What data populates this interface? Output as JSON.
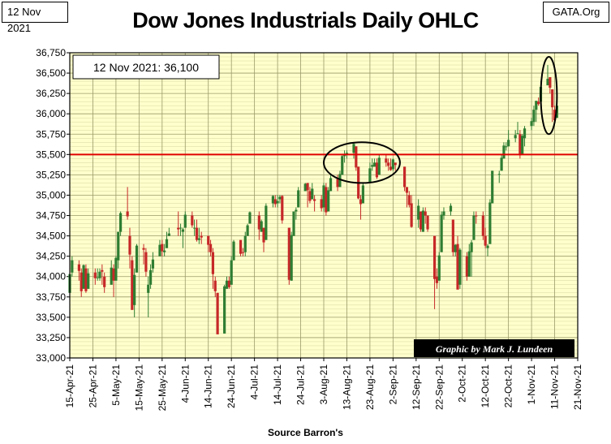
{
  "header": {
    "date_tag": "12 Nov 2021",
    "source_tag": "GATA.Org",
    "title": "Dow Jones Industrials Daily OHLC"
  },
  "footer": {
    "source": "Source Barron's"
  },
  "colors": {
    "plot_bg": "#ffffcc",
    "up": "#2e7d32",
    "down": "#c62828",
    "reference_line": "#e00000",
    "credit_bg": "#000000"
  },
  "chart_data": {
    "type": "candlestick",
    "title": "Dow Jones Industrials Daily OHLC",
    "annotation_box": "12 Nov 2021:  36,100",
    "credit": "Graphic by Mark J. Lundeen",
    "reference_line": {
      "value": 35500,
      "color": "#e00000"
    },
    "ylim": [
      33000,
      36750
    ],
    "y_ticks": [
      "33,000",
      "33,250",
      "33,500",
      "33,750",
      "34,000",
      "34,250",
      "34,500",
      "34,750",
      "35,000",
      "35,250",
      "35,500",
      "35,750",
      "36,000",
      "36,250",
      "36,500",
      "36,750"
    ],
    "x_ticks": [
      "15-Apr-21",
      "25-Apr-21",
      "5-May-21",
      "15-May-21",
      "25-May-21",
      "4-Jun-21",
      "14-Jun-21",
      "24-Jun-21",
      "4-Jul-21",
      "14-Jul-21",
      "24-Jul-21",
      "3-Aug-21",
      "13-Aug-21",
      "23-Aug-21",
      "2-Sep-21",
      "12-Sep-21",
      "22-Sep-21",
      "2-Oct-21",
      "12-Oct-21",
      "22-Oct-21",
      "1-Nov-21",
      "11-Nov-21",
      "21-Nov-21"
    ],
    "x_range": [
      "2021-04-15",
      "2021-11-21"
    ],
    "grid": true,
    "highlights": [
      {
        "shape": "ellipse",
        "x_from": "2021-08-03",
        "x_to": "2021-09-05",
        "y_from": 35150,
        "y_to": 35650
      },
      {
        "shape": "ellipse",
        "x_from": "2021-11-05",
        "x_to": "2021-11-12",
        "y_from": 35750,
        "y_to": 36700
      }
    ],
    "series_ohlc": [
      [
        "2021-04-15",
        33800,
        34050,
        33700,
        34030
      ],
      [
        "2021-04-16",
        34050,
        34250,
        34000,
        34200
      ],
      [
        "2021-04-19",
        34150,
        34200,
        33950,
        34070
      ],
      [
        "2021-04-20",
        34050,
        34100,
        33750,
        33820
      ],
      [
        "2021-04-21",
        33850,
        34150,
        33850,
        34140
      ],
      [
        "2021-04-22",
        34100,
        34150,
        33800,
        33820
      ],
      [
        "2021-04-23",
        33850,
        34100,
        33850,
        34040
      ],
      [
        "2021-04-26",
        34050,
        34100,
        33900,
        33980
      ],
      [
        "2021-04-27",
        33980,
        34100,
        33950,
        33990
      ],
      [
        "2021-04-28",
        33980,
        34100,
        33950,
        34060
      ],
      [
        "2021-04-29",
        34080,
        34150,
        33900,
        34060
      ],
      [
        "2021-04-30",
        34000,
        34050,
        33800,
        33870
      ],
      [
        "2021-05-03",
        33900,
        34200,
        33900,
        34110
      ],
      [
        "2021-05-04",
        34100,
        34150,
        33750,
        33950
      ],
      [
        "2021-05-05",
        33950,
        34250,
        33950,
        34230
      ],
      [
        "2021-05-06",
        34200,
        34550,
        34100,
        34550
      ],
      [
        "2021-05-07",
        34550,
        34800,
        34500,
        34780
      ],
      [
        "2021-05-10",
        34800,
        35100,
        34700,
        34740
      ],
      [
        "2021-05-11",
        34500,
        34600,
        34100,
        34270
      ],
      [
        "2021-05-12",
        34200,
        34250,
        33600,
        33590
      ],
      [
        "2021-05-13",
        33650,
        34100,
        33500,
        34020
      ],
      [
        "2021-05-14",
        34050,
        34400,
        34050,
        34380
      ],
      [
        "2021-05-17",
        34350,
        34400,
        34150,
        34330
      ],
      [
        "2021-05-18",
        34300,
        34350,
        34000,
        34060
      ],
      [
        "2021-05-19",
        33800,
        34000,
        33500,
        33900
      ],
      [
        "2021-05-20",
        33900,
        34150,
        33850,
        34080
      ],
      [
        "2021-05-21",
        34100,
        34300,
        34050,
        34210
      ],
      [
        "2021-05-24",
        34250,
        34450,
        34250,
        34390
      ],
      [
        "2021-05-25",
        34400,
        34450,
        34250,
        34310
      ],
      [
        "2021-05-26",
        34300,
        34400,
        34250,
        34320
      ],
      [
        "2021-05-27",
        34350,
        34550,
        34350,
        34460
      ],
      [
        "2021-05-28",
        34500,
        34600,
        34500,
        34530
      ],
      [
        "2021-06-01",
        34600,
        34800,
        34500,
        34580
      ],
      [
        "2021-06-02",
        34600,
        34650,
        34500,
        34600
      ],
      [
        "2021-06-03",
        34550,
        34600,
        34350,
        34580
      ],
      [
        "2021-06-04",
        34600,
        34800,
        34600,
        34760
      ],
      [
        "2021-06-07",
        34750,
        34800,
        34600,
        34630
      ],
      [
        "2021-06-08",
        34600,
        34700,
        34500,
        34600
      ],
      [
        "2021-06-09",
        34600,
        34700,
        34430,
        34450
      ],
      [
        "2021-06-10",
        34450,
        34600,
        34400,
        34470
      ],
      [
        "2021-06-11",
        34500,
        34550,
        34400,
        34480
      ],
      [
        "2021-06-14",
        34500,
        34500,
        34300,
        34390
      ],
      [
        "2021-06-15",
        34400,
        34450,
        34250,
        34300
      ],
      [
        "2021-06-16",
        34300,
        34350,
        33850,
        34030
      ],
      [
        "2021-06-17",
        33950,
        34000,
        33750,
        33820
      ],
      [
        "2021-06-18",
        33800,
        33800,
        33300,
        33290
      ],
      [
        "2021-06-21",
        33300,
        33900,
        33300,
        33880
      ],
      [
        "2021-06-22",
        33850,
        34000,
        33850,
        33950
      ],
      [
        "2021-06-23",
        33950,
        34000,
        33850,
        33870
      ],
      [
        "2021-06-24",
        33900,
        34250,
        33900,
        34200
      ],
      [
        "2021-06-25",
        34200,
        34450,
        34200,
        34430
      ],
      [
        "2021-06-28",
        34450,
        34450,
        34250,
        34280
      ],
      [
        "2021-06-29",
        34300,
        34350,
        34250,
        34290
      ],
      [
        "2021-06-30",
        34300,
        34550,
        34250,
        34500
      ],
      [
        "2021-07-01",
        34500,
        34650,
        34500,
        34630
      ],
      [
        "2021-07-02",
        34650,
        34800,
        34650,
        34790
      ],
      [
        "2021-07-06",
        34750,
        34800,
        34450,
        34580
      ],
      [
        "2021-07-07",
        34550,
        34700,
        34550,
        34680
      ],
      [
        "2021-07-08",
        34600,
        34600,
        34300,
        34420
      ],
      [
        "2021-07-09",
        34450,
        34900,
        34450,
        34870
      ],
      [
        "2021-07-12",
        34900,
        35000,
        34850,
        34990
      ],
      [
        "2021-07-13",
        34950,
        35000,
        34850,
        34890
      ],
      [
        "2021-07-14",
        34900,
        35000,
        34850,
        34930
      ],
      [
        "2021-07-15",
        34950,
        35000,
        34900,
        34980
      ],
      [
        "2021-07-16",
        34990,
        35000,
        34650,
        34690
      ],
      [
        "2021-07-19",
        34600,
        34600,
        33900,
        33960
      ],
      [
        "2021-07-20",
        33950,
        34550,
        33950,
        34510
      ],
      [
        "2021-07-21",
        34500,
        34800,
        34500,
        34800
      ],
      [
        "2021-07-22",
        34800,
        34850,
        34700,
        34820
      ],
      [
        "2021-07-23",
        34850,
        35100,
        34850,
        35060
      ],
      [
        "2021-07-26",
        35050,
        35150,
        35050,
        35140
      ],
      [
        "2021-07-27",
        35150,
        35150,
        34850,
        35060
      ],
      [
        "2021-07-28",
        35050,
        35100,
        34900,
        34930
      ],
      [
        "2021-07-29",
        34950,
        35150,
        34950,
        35080
      ],
      [
        "2021-07-30",
        34950,
        35000,
        34800,
        34930
      ],
      [
        "2021-08-02",
        34950,
        35000,
        34800,
        34840
      ],
      [
        "2021-08-03",
        34850,
        35150,
        34800,
        35120
      ],
      [
        "2021-08-04",
        35100,
        35150,
        34750,
        34790
      ],
      [
        "2021-08-05",
        34800,
        35100,
        34800,
        35060
      ],
      [
        "2021-08-06",
        35050,
        35250,
        35050,
        35210
      ],
      [
        "2021-08-09",
        35200,
        35250,
        35050,
        35100
      ],
      [
        "2021-08-10",
        35100,
        35300,
        35100,
        35260
      ],
      [
        "2021-08-11",
        35250,
        35500,
        35250,
        35480
      ],
      [
        "2021-08-12",
        35480,
        35550,
        35400,
        35500
      ],
      [
        "2021-08-13",
        35500,
        35550,
        35450,
        35520
      ],
      [
        "2021-08-16",
        35520,
        35650,
        35450,
        35630
      ],
      [
        "2021-08-17",
        35600,
        35600,
        35300,
        35340
      ],
      [
        "2021-08-18",
        35350,
        35350,
        34950,
        34960
      ],
      [
        "2021-08-19",
        34950,
        35000,
        34700,
        34890
      ],
      [
        "2021-08-20",
        34900,
        35150,
        34900,
        35120
      ],
      [
        "2021-08-23",
        35150,
        35400,
        35150,
        35330
      ],
      [
        "2021-08-24",
        35350,
        35450,
        35300,
        35370
      ],
      [
        "2021-08-25",
        35350,
        35450,
        35350,
        35400
      ],
      [
        "2021-08-26",
        35400,
        35450,
        35200,
        35220
      ],
      [
        "2021-08-27",
        35250,
        35500,
        35250,
        35460
      ],
      [
        "2021-08-30",
        35450,
        35500,
        35350,
        35400
      ],
      [
        "2021-08-31",
        35400,
        35450,
        35300,
        35360
      ],
      [
        "2021-09-01",
        35350,
        35450,
        35300,
        35310
      ],
      [
        "2021-09-02",
        35320,
        35450,
        35300,
        35440
      ],
      [
        "2021-09-03",
        35400,
        35400,
        35300,
        35370
      ],
      [
        "2021-09-07",
        35350,
        35350,
        35050,
        35100
      ],
      [
        "2021-09-08",
        35100,
        35100,
        34850,
        35030
      ],
      [
        "2021-09-09",
        35000,
        35050,
        34850,
        34880
      ],
      [
        "2021-09-10",
        34900,
        35000,
        34600,
        34610
      ],
      [
        "2021-09-13",
        34700,
        34950,
        34600,
        34870
      ],
      [
        "2021-09-14",
        34800,
        34800,
        34550,
        34580
      ],
      [
        "2021-09-15",
        34550,
        34850,
        34550,
        34810
      ],
      [
        "2021-09-16",
        34800,
        34850,
        34650,
        34750
      ],
      [
        "2021-09-17",
        34750,
        34750,
        34550,
        34580
      ],
      [
        "2021-09-20",
        34500,
        34500,
        33600,
        33970
      ],
      [
        "2021-09-21",
        34000,
        34100,
        33850,
        33920
      ],
      [
        "2021-09-22",
        33950,
        34300,
        33950,
        34260
      ],
      [
        "2021-09-23",
        34300,
        34800,
        34300,
        34760
      ],
      [
        "2021-09-24",
        34750,
        34850,
        34700,
        34800
      ],
      [
        "2021-09-27",
        34800,
        34900,
        34750,
        34870
      ],
      [
        "2021-09-28",
        34700,
        34700,
        34250,
        34300
      ],
      [
        "2021-09-29",
        34300,
        34400,
        34250,
        34390
      ],
      [
        "2021-09-30",
        34400,
        34500,
        33850,
        33840
      ],
      [
        "2021-10-01",
        33900,
        34350,
        33850,
        34330
      ],
      [
        "2021-10-04",
        34250,
        34300,
        33950,
        34000
      ],
      [
        "2021-10-05",
        34000,
        34400,
        34000,
        34310
      ],
      [
        "2021-10-06",
        34300,
        34450,
        34000,
        34420
      ],
      [
        "2021-10-07",
        34450,
        34800,
        34450,
        34750
      ],
      [
        "2021-10-08",
        34750,
        34800,
        34650,
        34740
      ],
      [
        "2021-10-11",
        34750,
        34800,
        34450,
        34500
      ],
      [
        "2021-10-12",
        34500,
        34600,
        34350,
        34380
      ],
      [
        "2021-10-13",
        34350,
        34400,
        34250,
        34380
      ],
      [
        "2021-10-14",
        34400,
        34950,
        34400,
        34910
      ],
      [
        "2021-10-15",
        34900,
        35300,
        34900,
        35300
      ],
      [
        "2021-10-18",
        35250,
        35300,
        35150,
        35260
      ],
      [
        "2021-10-19",
        35300,
        35500,
        35300,
        35460
      ],
      [
        "2021-10-20",
        35450,
        35650,
        35450,
        35610
      ],
      [
        "2021-10-21",
        35600,
        35650,
        35550,
        35600
      ],
      [
        "2021-10-22",
        35600,
        35800,
        35600,
        35680
      ],
      [
        "2021-10-25",
        35700,
        35800,
        35650,
        35740
      ],
      [
        "2021-10-26",
        35750,
        35900,
        35750,
        35760
      ],
      [
        "2021-10-27",
        35750,
        35800,
        35450,
        35490
      ],
      [
        "2021-10-28",
        35500,
        35750,
        35500,
        35730
      ],
      [
        "2021-10-29",
        35700,
        35850,
        35600,
        35820
      ],
      [
        "2021-11-01",
        35850,
        35950,
        35800,
        35910
      ],
      [
        "2021-11-02",
        35900,
        36100,
        35850,
        36050
      ],
      [
        "2021-11-03",
        36050,
        36150,
        35900,
        36160
      ],
      [
        "2021-11-04",
        36150,
        36200,
        36100,
        36120
      ],
      [
        "2021-11-05",
        36150,
        36400,
        36150,
        36330
      ],
      [
        "2021-11-08",
        36350,
        36600,
        36350,
        36430
      ],
      [
        "2021-11-09",
        36450,
        36450,
        36250,
        36320
      ],
      [
        "2021-11-10",
        36300,
        36300,
        35900,
        36080
      ],
      [
        "2021-11-11",
        36050,
        36100,
        35950,
        35920
      ],
      [
        "2021-11-12",
        35950,
        36150,
        35950,
        36100
      ]
    ]
  }
}
